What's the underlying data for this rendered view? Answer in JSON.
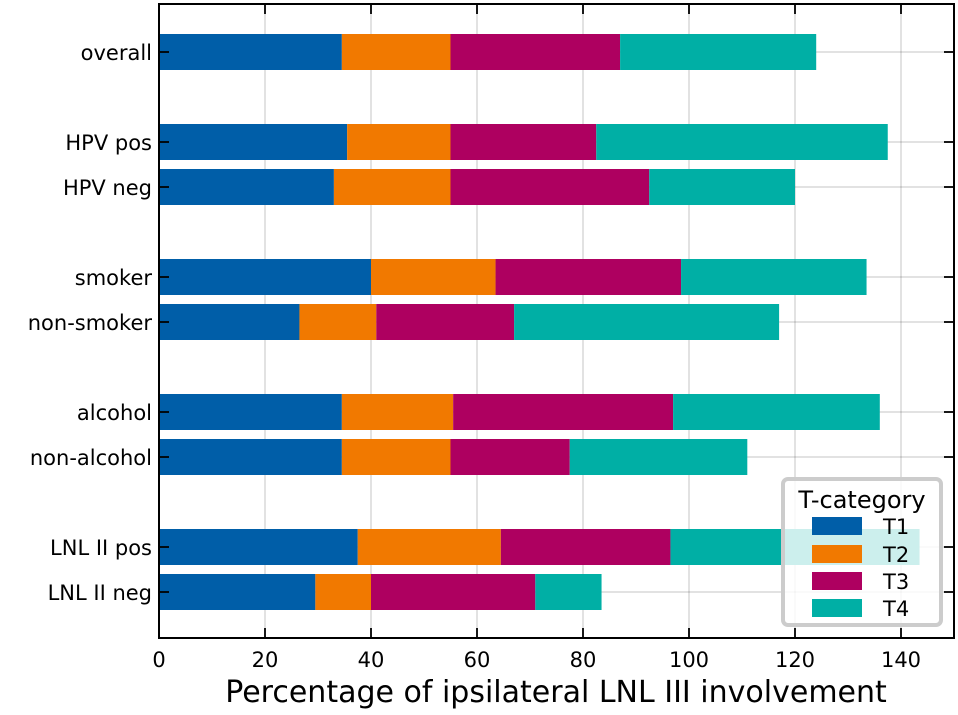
{
  "chart_data": {
    "type": "bar",
    "orientation": "horizontal",
    "stacked": true,
    "categories": [
      "overall",
      "HPV pos",
      "HPV neg",
      "smoker",
      "non-smoker",
      "alcohol",
      "non-alcohol",
      "LNL II pos",
      "LNL II neg"
    ],
    "series": [
      {
        "name": "T1",
        "color": "#005ea8",
        "values": [
          34.5,
          35.5,
          33.0,
          40.0,
          26.5,
          34.5,
          34.5,
          37.5,
          29.5
        ]
      },
      {
        "name": "T2",
        "color": "#f17900",
        "values": [
          20.5,
          19.5,
          22.0,
          23.5,
          14.5,
          21.0,
          20.5,
          27.0,
          10.5
        ]
      },
      {
        "name": "T3",
        "color": "#ae0060",
        "values": [
          32.0,
          27.5,
          37.5,
          35.0,
          26.0,
          41.5,
          22.5,
          32.0,
          31.0
        ]
      },
      {
        "name": "T4",
        "color": "#00afa5",
        "values": [
          37.0,
          55.0,
          27.5,
          35.0,
          50.0,
          39.0,
          33.5,
          47.0,
          12.5
        ]
      }
    ],
    "xlabel": "Percentage of ipsilateral LNL III involvement",
    "ylabel": "",
    "xlim": [
      0,
      150
    ],
    "xticks": [
      0,
      20,
      40,
      60,
      80,
      100,
      120,
      140
    ],
    "grid": true,
    "legend": {
      "title": "T-category",
      "placement": "lower-right"
    }
  }
}
